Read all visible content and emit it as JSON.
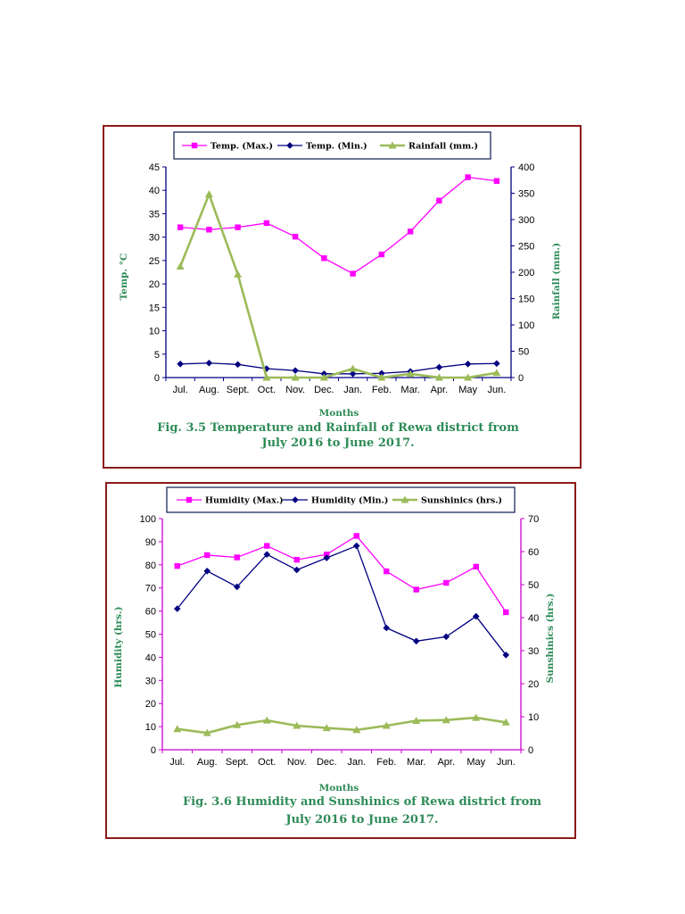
{
  "figures": [
    {
      "caption_line1": "Fig. 3.5  Temperature and Rainfall of Rewa district from",
      "caption_line2": "July 2016 to June 2017."
    },
    {
      "caption_line1": "Fig.  3.6  Humidity and Sunshinics of Rewa district from",
      "caption_line2": "July 2016 to June  2017."
    }
  ],
  "chart_data": [
    {
      "type": "line",
      "xlabel": "Months",
      "categories": [
        "Jul.",
        "Aug.",
        "Sept.",
        "Oct.",
        "Nov.",
        "Dec.",
        "Jan.",
        "Feb.",
        "Mar.",
        "Apr.",
        "May",
        "Jun."
      ],
      "left_axis": {
        "label": "Temp. °C",
        "range": [
          0,
          45
        ],
        "ticks": [
          0,
          5,
          10,
          15,
          20,
          25,
          30,
          35,
          40,
          45
        ]
      },
      "right_axis": {
        "label": "Rainfall (mm.)",
        "range": [
          0,
          400
        ],
        "ticks": [
          0,
          50,
          100,
          150,
          200,
          250,
          300,
          350,
          400
        ]
      },
      "legend_position": "top",
      "series": [
        {
          "name": "Temp. (Max.)",
          "axis": "left",
          "color": "#ff00ff",
          "marker": "square",
          "values": [
            32.1,
            31.6,
            32.1,
            33.0,
            30.1,
            25.5,
            22.2,
            26.3,
            31.2,
            37.8,
            42.8,
            42.0
          ]
        },
        {
          "name": "Temp. (Min.)",
          "axis": "left",
          "color": "#000080",
          "marker": "diamond",
          "values": [
            2.9,
            3.1,
            2.8,
            1.9,
            1.5,
            0.8,
            0.8,
            0.9,
            1.3,
            2.2,
            2.9,
            3.0
          ]
        },
        {
          "name": "Rainfall (mm.)",
          "axis": "right",
          "color": "#9bbb59",
          "marker": "triangle",
          "values": [
            211,
            348,
            196,
            0,
            0,
            0,
            17,
            0,
            7,
            0,
            0,
            9
          ]
        }
      ]
    },
    {
      "type": "line",
      "xlabel": "Months",
      "categories": [
        "Jul.",
        "Aug.",
        "Sept.",
        "Oct.",
        "Nov.",
        "Dec.",
        "Jan.",
        "Feb.",
        "Mar.",
        "Apr.",
        "May",
        "Jun."
      ],
      "left_axis": {
        "label": "Humidity (hrs.)",
        "range": [
          0,
          100
        ],
        "ticks": [
          0,
          10,
          20,
          30,
          40,
          50,
          60,
          70,
          80,
          90,
          100
        ]
      },
      "right_axis": {
        "label": "Sunshinics (hrs.)",
        "range": [
          0,
          70
        ],
        "ticks": [
          0,
          10,
          20,
          30,
          40,
          50,
          60,
          70
        ]
      },
      "legend_position": "top",
      "series": [
        {
          "name": "Humidity (Max.)",
          "axis": "left",
          "color": "#ff00ff",
          "marker": "square",
          "values": [
            79.5,
            84.2,
            83.2,
            88.2,
            82.2,
            84.5,
            92.5,
            77.2,
            69.3,
            72.2,
            79.2,
            59.5
          ]
        },
        {
          "name": "Humidity (Min.)",
          "axis": "left",
          "color": "#000080",
          "marker": "diamond",
          "values": [
            61,
            77.3,
            70.5,
            84.5,
            77.8,
            83.0,
            88.2,
            52.7,
            47.0,
            48.9,
            57.7,
            41.0
          ]
        },
        {
          "name": "Sunshinics (hrs.)",
          "axis": "right",
          "color": "#9bbb59",
          "marker": "triangle",
          "values": [
            6.3,
            5.1,
            7.5,
            8.9,
            7.3,
            6.6,
            6.0,
            7.3,
            8.8,
            9.0,
            9.7,
            8.3
          ]
        }
      ]
    }
  ]
}
